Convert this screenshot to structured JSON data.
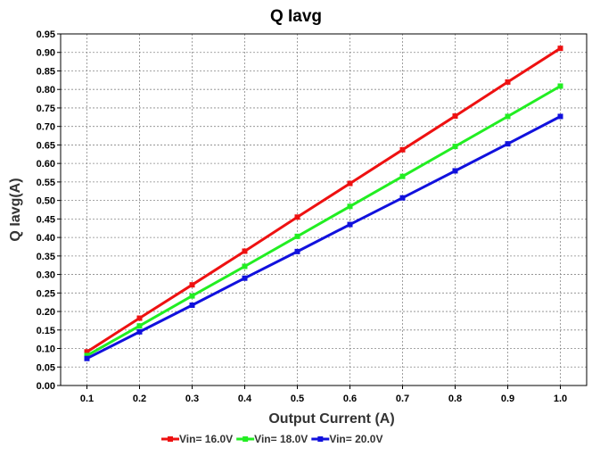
{
  "chart_data": {
    "type": "line",
    "title": "Q Iavg",
    "xlabel": "Output Current (A)",
    "ylabel": "Q Iavg(A)",
    "x": [
      0.1,
      0.2,
      0.3,
      0.4,
      0.5,
      0.6,
      0.7,
      0.8,
      0.9,
      1.0
    ],
    "x_tick_labels": [
      "0.1",
      "0.2",
      "0.3",
      "0.4",
      "0.5",
      "0.6",
      "0.7",
      "0.8",
      "0.9",
      "1.0"
    ],
    "ylim": [
      0,
      0.95
    ],
    "y_tick_labels": [
      "0.00",
      "0.05",
      "0.10",
      "0.15",
      "0.20",
      "0.25",
      "0.30",
      "0.35",
      "0.40",
      "0.45",
      "0.50",
      "0.55",
      "0.60",
      "0.65",
      "0.70",
      "0.75",
      "0.80",
      "0.85",
      "0.90",
      "0.95"
    ],
    "grid": true,
    "legend_position": "bottom",
    "series": [
      {
        "name": "Vin= 16.0V",
        "color": "#ee1111",
        "values": [
          0.091,
          0.182,
          0.272,
          0.363,
          0.455,
          0.546,
          0.637,
          0.728,
          0.82,
          0.911
        ]
      },
      {
        "name": "Vin= 18.0V",
        "color": "#22ee22",
        "values": [
          0.081,
          0.161,
          0.242,
          0.322,
          0.403,
          0.484,
          0.565,
          0.646,
          0.727,
          0.809
        ]
      },
      {
        "name": "Vin= 20.0V",
        "color": "#1111dd",
        "values": [
          0.073,
          0.145,
          0.217,
          0.29,
          0.362,
          0.435,
          0.507,
          0.58,
          0.653,
          0.727
        ]
      }
    ]
  }
}
